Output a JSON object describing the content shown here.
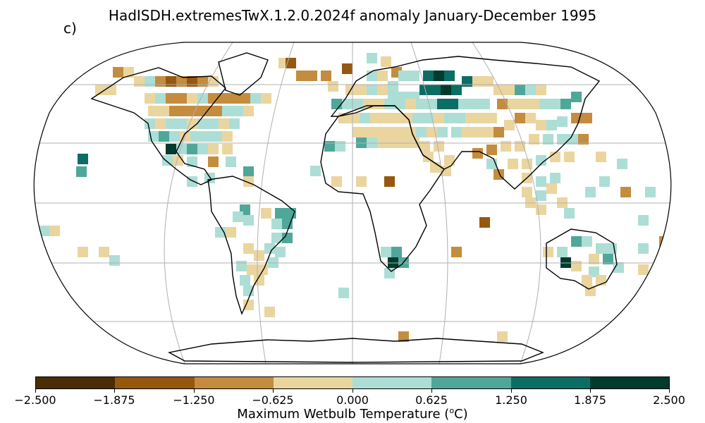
{
  "figure": {
    "panel_label": "c)",
    "title": "HadISDH.extremesTwX.1.2.0.2024f anomaly January-December 1995",
    "colorbar_title": "Maximum Wetbulb Temperature (",
    "colorbar_unit": "oC",
    "colorbar_close": ")"
  },
  "colorbar": {
    "ticks": [
      "−2.500",
      "−1.875",
      "−1.250",
      "−0.625",
      "0.000",
      "0.625",
      "1.250",
      "1.875",
      "2.500"
    ],
    "colors": [
      "#4a2c05",
      "#96570f",
      "#c48c3e",
      "#ebd59f",
      "#acded6",
      "#4fa79a",
      "#0b6d63",
      "#003b2e"
    ]
  },
  "map": {
    "projection": "robinson",
    "grid": true,
    "colors": {
      "dark_brown": "#96570f",
      "brown": "#c48c3e",
      "tan": "#ebd59f",
      "light_teal": "#acded6",
      "teal": "#4fa79a",
      "dark_teal": "#0b6d63",
      "darkest": "#003b2e"
    }
  }
}
